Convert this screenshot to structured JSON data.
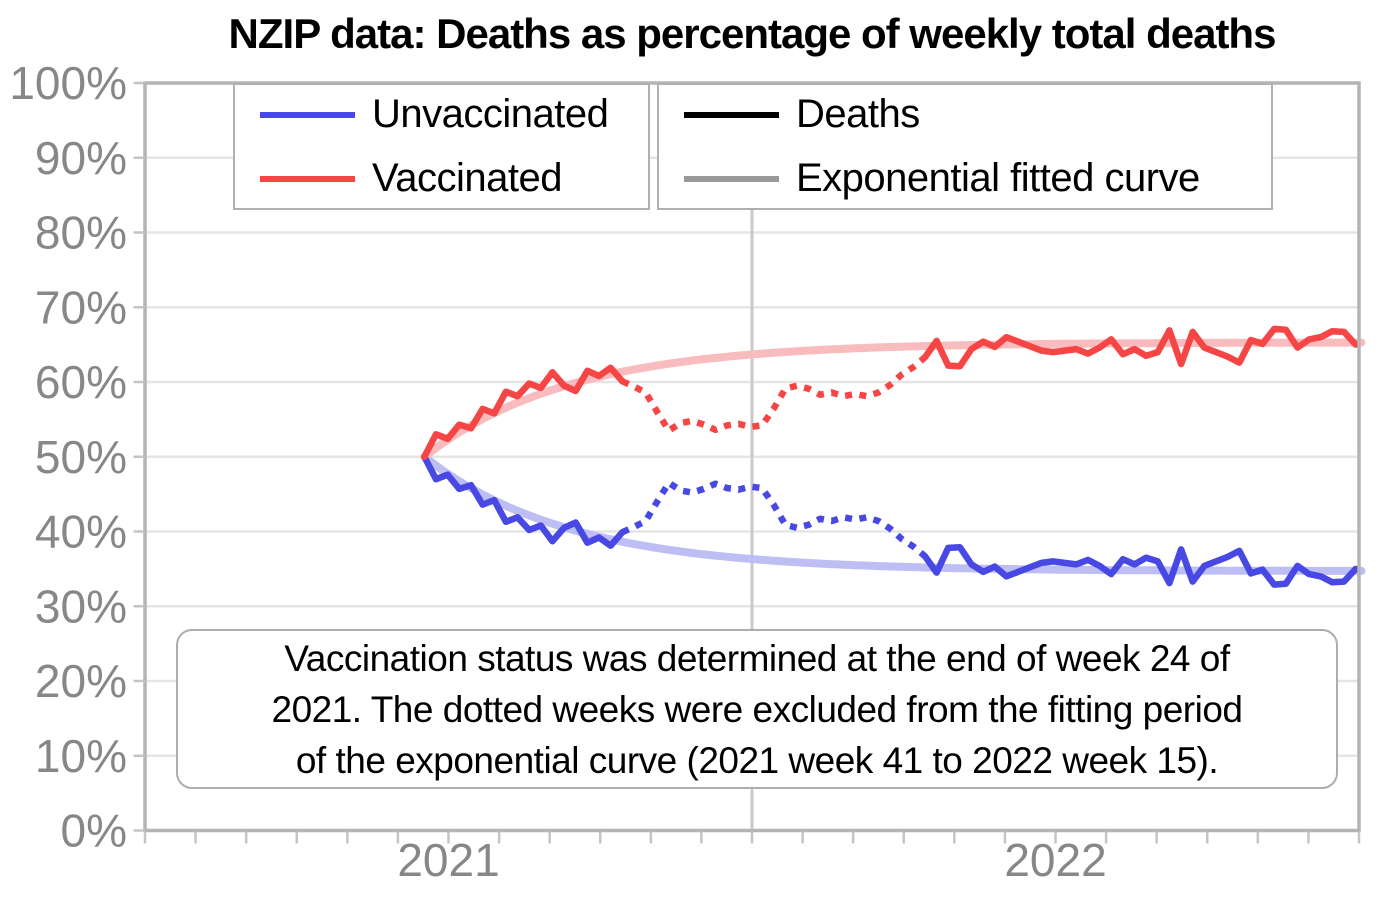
{
  "title": "NZIP data: Deaths as percentage of weekly total deaths",
  "legend": {
    "left": [
      {
        "label": "Unvaccinated",
        "color": "#4848e4"
      },
      {
        "label": "Vaccinated",
        "color": "#f64545"
      }
    ],
    "right": [
      {
        "label": "Deaths",
        "color": "#000000"
      },
      {
        "label": "Exponential fitted curve",
        "color": "#999999"
      }
    ]
  },
  "annotation": {
    "text": "Vaccination status was determined at the end of week 24 of\n2021. The dotted weeks were excluded from the fitting period\nof the exponential curve (2021 week 41 to 2022 week 15)."
  },
  "colors": {
    "vaccinated": "#f64545",
    "unvaccinated": "#4848e4",
    "vaccinated_fit": "#f8bcbe",
    "unvaccinated_fit": "#bdbff4",
    "gridline": "#e5e5e5",
    "year_gridline": "#c9c9c9",
    "spine": "#b4b4b4",
    "tick": "#c4c4c4",
    "tick_label": "#878787",
    "title_color": "#000000"
  },
  "chart_data": {
    "type": "line",
    "title": "NZIP data: Deaths as percentage of weekly total deaths",
    "sampling": "weekly",
    "start": {
      "year": 2021,
      "week": 24
    },
    "end": {
      "year": 2022,
      "week": 52
    },
    "x_axis": {
      "range_years": [
        2021.0,
        2023.0
      ],
      "ticks": [
        {
          "label": "2021",
          "pos_years": 0.5
        },
        {
          "label": "2022",
          "pos_years": 1.5
        }
      ],
      "minor_ticks": "monthly",
      "year_gridline_at": 2022
    },
    "y_axis": {
      "range": [
        0,
        100
      ],
      "tick_values": [
        0,
        10,
        20,
        30,
        40,
        50,
        60,
        70,
        80,
        90,
        100
      ],
      "tick_labels": [
        "0%",
        "10%",
        "20%",
        "30%",
        "40%",
        "50%",
        "60%",
        "70%",
        "80%",
        "90%",
        "100%"
      ],
      "grid": true
    },
    "excluded_weeks": {
      "start": {
        "year": 2021,
        "week": 41
      },
      "end": {
        "year": 2022,
        "week": 15
      },
      "start_index": 17,
      "end_index": 43,
      "style": "dotted"
    },
    "series": [
      {
        "name": "Unvaccinated",
        "color": "#4848e4",
        "values": [
          50.0,
          47.0,
          47.6,
          45.7,
          46.2,
          43.6,
          44.2,
          41.3,
          41.9,
          40.2,
          40.8,
          38.7,
          40.5,
          41.2,
          38.5,
          39.2,
          38.1,
          39.9,
          40.6,
          41.4,
          44.0,
          46.5,
          45.5,
          45.2,
          45.7,
          46.4,
          45.8,
          45.6,
          46.0,
          45.8,
          43.6,
          40.9,
          40.5,
          40.9,
          41.7,
          41.4,
          41.9,
          41.6,
          41.9,
          41.4,
          40.4,
          39.0,
          38.0,
          36.7,
          34.5,
          37.8,
          37.9,
          35.6,
          34.6,
          35.3,
          34.0,
          34.6,
          35.2,
          35.8,
          36.0,
          35.8,
          35.6,
          36.2,
          35.4,
          34.3,
          36.3,
          35.6,
          36.5,
          36.0,
          33.1,
          37.6,
          33.3,
          35.4,
          36.0,
          36.6,
          37.4,
          34.4,
          34.9,
          32.9,
          33.0,
          35.4,
          34.3,
          34.0,
          33.2,
          33.3,
          35.0
        ]
      },
      {
        "name": "Vaccinated",
        "color": "#f64545",
        "values": [
          50.0,
          53.0,
          52.4,
          54.3,
          53.8,
          56.4,
          55.8,
          58.7,
          58.1,
          59.8,
          59.2,
          61.3,
          59.5,
          58.8,
          61.5,
          60.8,
          61.9,
          60.1,
          59.4,
          58.6,
          56.0,
          53.5,
          54.5,
          54.8,
          54.3,
          53.6,
          54.2,
          54.4,
          54.0,
          54.2,
          56.4,
          59.1,
          59.5,
          59.1,
          58.3,
          58.6,
          58.1,
          58.4,
          58.1,
          58.6,
          59.6,
          61.0,
          62.0,
          63.3,
          65.5,
          62.2,
          62.1,
          64.4,
          65.4,
          64.7,
          66.0,
          65.4,
          64.8,
          64.2,
          64.0,
          64.2,
          64.4,
          63.8,
          64.6,
          65.7,
          63.7,
          64.4,
          63.5,
          64.0,
          66.9,
          62.4,
          66.7,
          64.6,
          64.0,
          63.4,
          62.6,
          65.6,
          65.1,
          67.1,
          67.0,
          64.6,
          65.7,
          66.0,
          66.8,
          66.7,
          65.0
        ]
      }
    ],
    "fitted_curves": [
      {
        "name": "Unvaccinated exponential fit",
        "color": "#bdbff4",
        "asymptote": 34.7,
        "amplitude": 15.3,
        "rate_per_week": 0.08
      },
      {
        "name": "Vaccinated exponential fit",
        "color": "#f8bcbe",
        "asymptote": 65.3,
        "amplitude": -15.3,
        "rate_per_week": 0.08
      }
    ]
  }
}
